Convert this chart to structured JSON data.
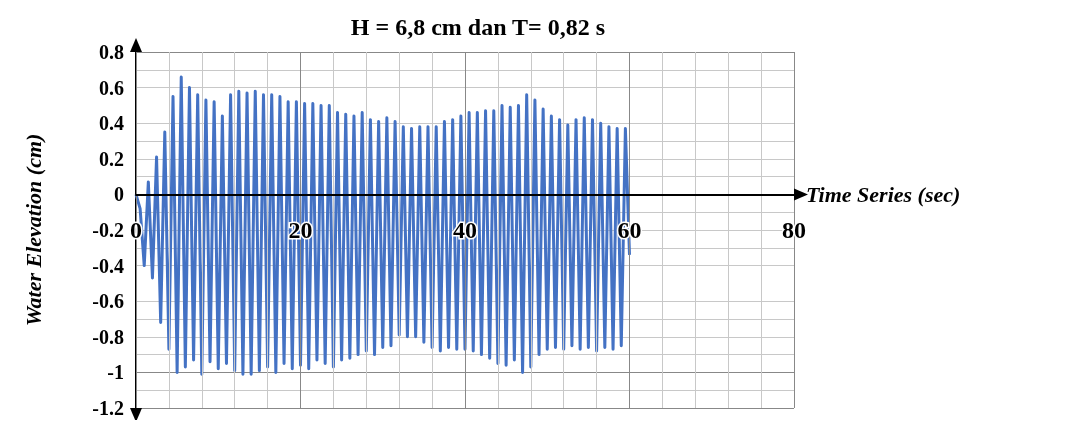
{
  "chart_data": {
    "type": "line",
    "title": "H = 6,8 cm dan T= 0,82 s",
    "xlabel": "Time Series (sec)",
    "ylabel": "Water Elevation (cm)",
    "x": [
      0,
      0.5,
      1,
      1.5,
      2,
      2.5,
      3,
      3.5,
      4,
      4.5,
      5,
      5.5,
      6,
      6.5,
      7,
      7.5,
      8,
      8.5,
      9,
      9.5,
      10,
      10.5,
      11,
      11.5,
      12,
      12.5,
      13,
      13.5,
      14,
      14.5,
      15,
      15.5,
      16,
      16.5,
      17,
      17.5,
      18,
      18.5,
      19,
      19.5,
      20,
      20.5,
      21,
      21.5,
      22,
      22.5,
      23,
      23.5,
      24,
      24.5,
      25,
      25.5,
      26,
      26.5,
      27,
      27.5,
      28,
      28.5,
      29,
      29.5,
      30,
      30.5,
      31,
      31.5,
      32,
      32.5,
      33,
      33.5,
      34,
      34.5,
      35,
      35.5,
      36,
      36.5,
      37,
      37.5,
      38,
      38.5,
      39,
      39.5,
      40,
      40.5,
      41,
      41.5,
      42,
      42.5,
      43,
      43.5,
      44,
      44.5,
      45,
      45.5,
      46,
      46.5,
      47,
      47.5,
      48,
      48.5,
      49,
      49.5,
      50,
      50.5,
      51,
      51.5,
      52,
      52.5,
      53,
      53.5,
      54,
      54.5,
      55,
      55.5,
      56,
      56.5,
      57,
      57.5,
      58,
      58.5,
      59,
      59.5,
      60
    ],
    "series": [
      {
        "color": "#4472c4",
        "values": [
          0,
          -0.08,
          -0.4,
          0.07,
          -0.47,
          0.21,
          -0.72,
          0.35,
          -0.87,
          0.55,
          -1.0,
          0.66,
          -0.97,
          0.6,
          -0.93,
          0.56,
          -1.01,
          0.53,
          -0.94,
          0.52,
          -0.98,
          0.44,
          -0.95,
          0.56,
          -0.99,
          0.58,
          -1.01,
          0.57,
          -1.01,
          0.58,
          -0.99,
          0.56,
          -0.97,
          0.56,
          -1.0,
          0.55,
          -0.95,
          0.52,
          -0.98,
          0.52,
          -0.96,
          0.51,
          -0.98,
          0.51,
          -0.93,
          0.5,
          -0.95,
          0.5,
          -0.97,
          0.46,
          -0.93,
          0.45,
          -0.92,
          0.44,
          -0.9,
          0.46,
          -0.88,
          0.42,
          -0.9,
          0.41,
          -0.86,
          0.43,
          -0.85,
          0.41,
          -0.79,
          0.38,
          -0.8,
          0.37,
          -0.8,
          0.38,
          -0.83,
          0.38,
          -0.86,
          0.38,
          -0.88,
          0.41,
          -0.86,
          0.42,
          -0.87,
          0.44,
          -0.87,
          0.46,
          -0.88,
          0.46,
          -0.9,
          0.47,
          -0.92,
          0.47,
          -0.95,
          0.5,
          -0.96,
          0.49,
          -0.93,
          0.5,
          -1.0,
          0.56,
          -0.97,
          0.53,
          -0.9,
          0.48,
          -0.87,
          0.44,
          -0.86,
          0.42,
          -0.87,
          0.39,
          -0.85,
          0.42,
          -0.87,
          0.43,
          -0.86,
          0.42,
          -0.88,
          0.4,
          -0.86,
          0.38,
          -0.87,
          0.37,
          -0.85,
          0.37,
          -0.34
        ]
      }
    ],
    "xlim": [
      0,
      80
    ],
    "xticks": [
      0,
      20,
      40,
      60,
      80
    ],
    "ylim": [
      -1.2,
      0.8
    ],
    "yticks": [
      -1.2,
      -1,
      -0.8,
      -0.6,
      -0.4,
      -0.2,
      0,
      0.2,
      0.4,
      0.6,
      0.8
    ],
    "grid": true,
    "marker": "none",
    "line_style": "solid"
  }
}
